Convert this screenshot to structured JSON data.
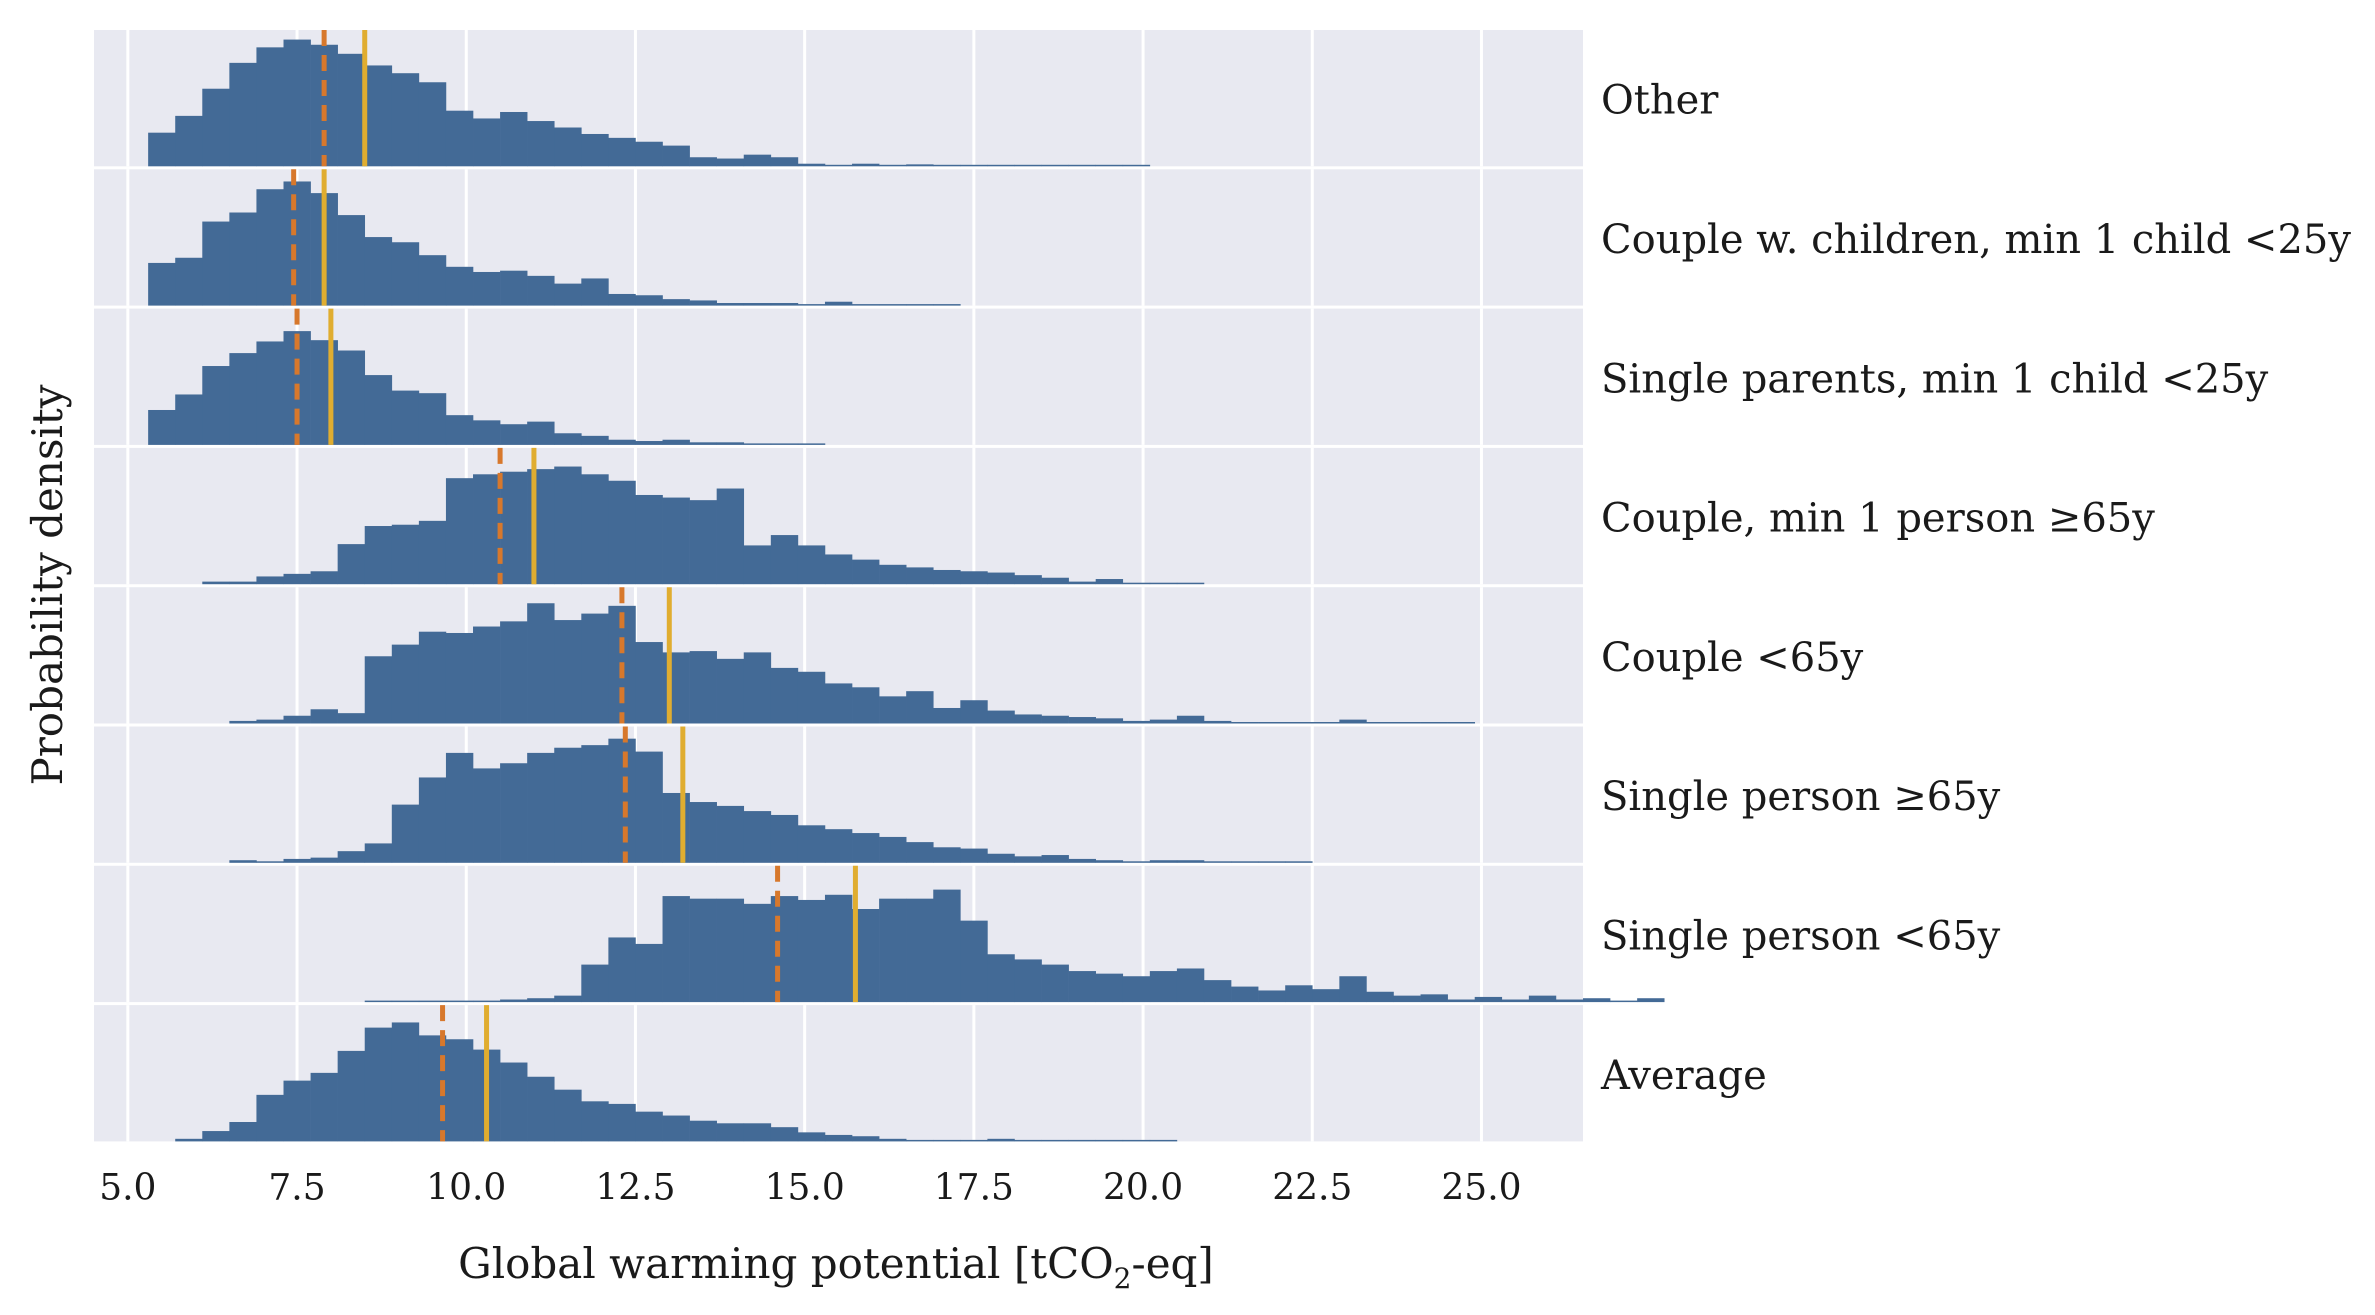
{
  "chart_data": {
    "type": "histogram",
    "xlabel_main": "Global warming potential [tCO",
    "xlabel_sub": "2",
    "xlabel_end": "-eq]",
    "ylabel": "Probability density",
    "xlim": [
      4.5,
      26.5
    ],
    "xticks": [
      5.0,
      7.5,
      10.0,
      12.5,
      15.0,
      17.5,
      20.0,
      22.5,
      25.0
    ],
    "xtick_labels": [
      "5.0",
      "7.5",
      "10.0",
      "12.5",
      "15.0",
      "17.5",
      "20.0",
      "22.5",
      "25.0"
    ],
    "bin_width": 0.4,
    "grid": true,
    "colors": {
      "bars": "#436a96",
      "background": "#e8e9f1",
      "grid": "#ffffff",
      "mean": "#e0ad30",
      "median": "#d7782c"
    },
    "rows": [
      {
        "label": "Other",
        "start": 5.3,
        "values": [
          0.26,
          0.39,
          0.6,
          0.8,
          0.92,
          0.98,
          0.94,
          0.87,
          0.78,
          0.72,
          0.65,
          0.43,
          0.37,
          0.42,
          0.35,
          0.3,
          0.25,
          0.22,
          0.19,
          0.16,
          0.07,
          0.06,
          0.09,
          0.07,
          0.02,
          0.01,
          0.02,
          0.01,
          0.015,
          0.01,
          0.01,
          0.01,
          0.01,
          0.005,
          0.005,
          0.005,
          0.005
        ],
        "mean": 8.5,
        "median": 7.9
      },
      {
        "label": "Couple w. children, min 1 child <25y",
        "start": 5.3,
        "values": [
          0.33,
          0.37,
          0.65,
          0.72,
          0.9,
          0.96,
          0.87,
          0.7,
          0.53,
          0.49,
          0.39,
          0.3,
          0.26,
          0.27,
          0.23,
          0.17,
          0.21,
          0.09,
          0.08,
          0.05,
          0.04,
          0.02,
          0.02,
          0.02,
          0.01,
          0.03,
          0.005,
          0.005,
          0.005,
          0.005
        ],
        "mean": 7.9,
        "median": 7.45
      },
      {
        "label": "Single parents, min 1 child <25y",
        "start": 5.3,
        "values": [
          0.27,
          0.39,
          0.61,
          0.71,
          0.8,
          0.88,
          0.81,
          0.73,
          0.54,
          0.42,
          0.4,
          0.23,
          0.19,
          0.16,
          0.18,
          0.09,
          0.07,
          0.04,
          0.03,
          0.04,
          0.02,
          0.02,
          0.01,
          0.005,
          0.005
        ],
        "mean": 8.0,
        "median": 7.5
      },
      {
        "label": "Couple, min 1 person ≥65y",
        "start": 6.1,
        "values": [
          0.02,
          0.02,
          0.06,
          0.08,
          0.1,
          0.31,
          0.45,
          0.46,
          0.49,
          0.82,
          0.85,
          0.87,
          0.89,
          0.91,
          0.85,
          0.8,
          0.69,
          0.67,
          0.65,
          0.74,
          0.3,
          0.38,
          0.3,
          0.23,
          0.19,
          0.15,
          0.13,
          0.11,
          0.1,
          0.09,
          0.07,
          0.05,
          0.02,
          0.04,
          0.01,
          0.005,
          0.005
        ],
        "mean": 11.0,
        "median": 10.5
      },
      {
        "label": "Couple <65y",
        "start": 6.5,
        "values": [
          0.02,
          0.03,
          0.06,
          0.11,
          0.08,
          0.52,
          0.61,
          0.71,
          0.7,
          0.75,
          0.79,
          0.93,
          0.8,
          0.85,
          0.91,
          0.63,
          0.55,
          0.56,
          0.5,
          0.55,
          0.43,
          0.4,
          0.31,
          0.28,
          0.21,
          0.25,
          0.12,
          0.18,
          0.1,
          0.07,
          0.06,
          0.05,
          0.04,
          0.02,
          0.03,
          0.06,
          0.02,
          0.01,
          0.005,
          0.01,
          0.005,
          0.03,
          0.005,
          0.005,
          0.005,
          0.005
        ],
        "mean": 13.0,
        "median": 12.3
      },
      {
        "label": "Single person ≥65y",
        "start": 6.5,
        "values": [
          0.02,
          0.01,
          0.03,
          0.04,
          0.09,
          0.15,
          0.45,
          0.66,
          0.85,
          0.73,
          0.77,
          0.85,
          0.89,
          0.91,
          0.96,
          0.86,
          0.54,
          0.47,
          0.44,
          0.4,
          0.37,
          0.29,
          0.26,
          0.23,
          0.2,
          0.16,
          0.12,
          0.11,
          0.07,
          0.05,
          0.06,
          0.03,
          0.02,
          0.01,
          0.02,
          0.02,
          0.005,
          0.005,
          0.005,
          0.005
        ],
        "mean": 13.2,
        "median": 12.35
      },
      {
        "label": "Single person <65y",
        "start": 8.5,
        "values": [
          0.005,
          0.005,
          0.01,
          0.005,
          0.01,
          0.02,
          0.03,
          0.05,
          0.29,
          0.5,
          0.45,
          0.82,
          0.8,
          0.8,
          0.76,
          0.82,
          0.79,
          0.83,
          0.72,
          0.8,
          0.8,
          0.87,
          0.63,
          0.37,
          0.33,
          0.29,
          0.24,
          0.22,
          0.2,
          0.24,
          0.26,
          0.17,
          0.12,
          0.09,
          0.13,
          0.1,
          0.2,
          0.08,
          0.05,
          0.06,
          0.02,
          0.04,
          0.02,
          0.05,
          0.02,
          0.03,
          0.005,
          0.03
        ],
        "mean": 15.75,
        "median": 14.6
      },
      {
        "label": "Average",
        "start": 5.7,
        "values": [
          0.02,
          0.08,
          0.15,
          0.36,
          0.47,
          0.53,
          0.7,
          0.88,
          0.92,
          0.82,
          0.79,
          0.71,
          0.61,
          0.5,
          0.4,
          0.31,
          0.29,
          0.23,
          0.2,
          0.16,
          0.14,
          0.14,
          0.11,
          0.07,
          0.05,
          0.04,
          0.02,
          0.01,
          0.005,
          0.005,
          0.02,
          0.01,
          0.005,
          0.005,
          0.005,
          0.01,
          0.005
        ],
        "mean": 10.3,
        "median": 9.65
      }
    ]
  }
}
